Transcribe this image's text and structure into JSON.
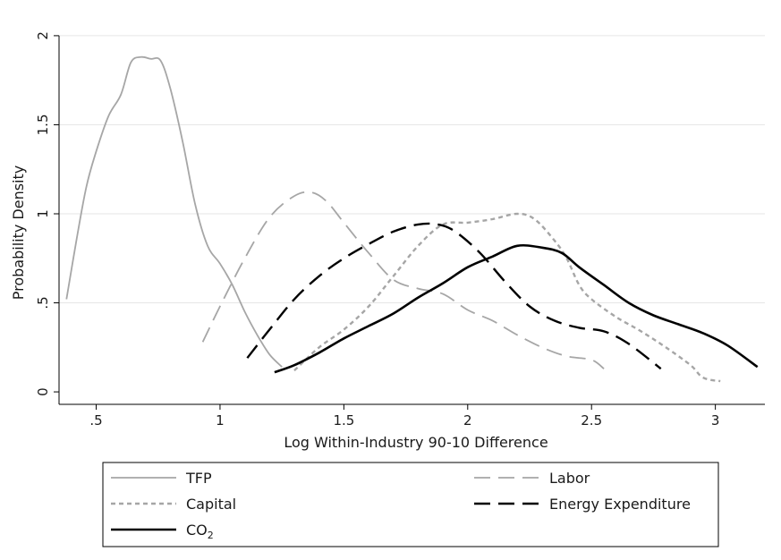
{
  "chart_data": {
    "type": "line",
    "title": "",
    "xlabel": "Log Within-Industry 90-10 Difference",
    "ylabel": "Probability Density",
    "xlim": [
      0.35,
      3.2
    ],
    "ylim": [
      -0.07,
      2.1
    ],
    "x_ticks": [
      0.5,
      1,
      1.5,
      2,
      2.5,
      3
    ],
    "x_tick_labels": [
      ".5",
      "1",
      "1.5",
      "2",
      "2.5",
      "3"
    ],
    "y_ticks": [
      0,
      0.5,
      1,
      1.5,
      2
    ],
    "y_tick_labels": [
      "0",
      ".5",
      "1",
      "1.5",
      "2"
    ],
    "grid": "horizontal",
    "legend_position": "bottom",
    "series": [
      {
        "name": "TFP",
        "color": "#a6a6a6",
        "dash": "solid",
        "width": 1.8,
        "points": [
          [
            0.38,
            0.52
          ],
          [
            0.42,
            0.85
          ],
          [
            0.46,
            1.15
          ],
          [
            0.5,
            1.35
          ],
          [
            0.55,
            1.55
          ],
          [
            0.6,
            1.67
          ],
          [
            0.64,
            1.85
          ],
          [
            0.68,
            1.88
          ],
          [
            0.72,
            1.87
          ],
          [
            0.76,
            1.86
          ],
          [
            0.8,
            1.7
          ],
          [
            0.85,
            1.4
          ],
          [
            0.9,
            1.05
          ],
          [
            0.95,
            0.82
          ],
          [
            1.0,
            0.72
          ],
          [
            1.05,
            0.6
          ],
          [
            1.1,
            0.45
          ],
          [
            1.15,
            0.32
          ],
          [
            1.2,
            0.21
          ],
          [
            1.25,
            0.14
          ]
        ]
      },
      {
        "name": "Labor",
        "color": "#a6a6a6",
        "dash": "long-dash",
        "width": 1.8,
        "points": [
          [
            0.93,
            0.28
          ],
          [
            1.0,
            0.48
          ],
          [
            1.1,
            0.75
          ],
          [
            1.2,
            0.98
          ],
          [
            1.3,
            1.1
          ],
          [
            1.37,
            1.12
          ],
          [
            1.43,
            1.07
          ],
          [
            1.5,
            0.95
          ],
          [
            1.6,
            0.78
          ],
          [
            1.7,
            0.63
          ],
          [
            1.8,
            0.58
          ],
          [
            1.9,
            0.55
          ],
          [
            2.0,
            0.46
          ],
          [
            2.1,
            0.4
          ],
          [
            2.2,
            0.32
          ],
          [
            2.3,
            0.25
          ],
          [
            2.4,
            0.2
          ],
          [
            2.5,
            0.18
          ],
          [
            2.55,
            0.13
          ]
        ]
      },
      {
        "name": "Capital",
        "color": "#a6a6a6",
        "dash": "short-dash",
        "width": 2.4,
        "points": [
          [
            1.3,
            0.12
          ],
          [
            1.4,
            0.25
          ],
          [
            1.5,
            0.35
          ],
          [
            1.6,
            0.48
          ],
          [
            1.7,
            0.65
          ],
          [
            1.8,
            0.82
          ],
          [
            1.9,
            0.94
          ],
          [
            2.0,
            0.95
          ],
          [
            2.1,
            0.97
          ],
          [
            2.2,
            1.0
          ],
          [
            2.27,
            0.97
          ],
          [
            2.35,
            0.85
          ],
          [
            2.4,
            0.75
          ],
          [
            2.45,
            0.6
          ],
          [
            2.5,
            0.52
          ],
          [
            2.6,
            0.42
          ],
          [
            2.7,
            0.34
          ],
          [
            2.8,
            0.25
          ],
          [
            2.9,
            0.15
          ],
          [
            2.95,
            0.08
          ],
          [
            3.02,
            0.06
          ]
        ]
      },
      {
        "name": "Energy Expenditure",
        "color": "#000000",
        "dash": "long-dash",
        "width": 2.4,
        "points": [
          [
            1.11,
            0.19
          ],
          [
            1.2,
            0.35
          ],
          [
            1.3,
            0.52
          ],
          [
            1.4,
            0.65
          ],
          [
            1.5,
            0.75
          ],
          [
            1.6,
            0.83
          ],
          [
            1.7,
            0.9
          ],
          [
            1.8,
            0.94
          ],
          [
            1.88,
            0.94
          ],
          [
            1.95,
            0.9
          ],
          [
            2.05,
            0.78
          ],
          [
            2.15,
            0.62
          ],
          [
            2.25,
            0.48
          ],
          [
            2.35,
            0.4
          ],
          [
            2.45,
            0.36
          ],
          [
            2.55,
            0.34
          ],
          [
            2.65,
            0.27
          ],
          [
            2.78,
            0.13
          ]
        ]
      },
      {
        "name": "CO2",
        "color": "#000000",
        "dash": "solid",
        "width": 2.6,
        "points": [
          [
            1.22,
            0.11
          ],
          [
            1.3,
            0.15
          ],
          [
            1.4,
            0.22
          ],
          [
            1.5,
            0.3
          ],
          [
            1.6,
            0.37
          ],
          [
            1.7,
            0.44
          ],
          [
            1.8,
            0.53
          ],
          [
            1.9,
            0.61
          ],
          [
            2.0,
            0.7
          ],
          [
            2.1,
            0.76
          ],
          [
            2.2,
            0.82
          ],
          [
            2.3,
            0.81
          ],
          [
            2.38,
            0.78
          ],
          [
            2.45,
            0.7
          ],
          [
            2.55,
            0.6
          ],
          [
            2.65,
            0.5
          ],
          [
            2.75,
            0.43
          ],
          [
            2.85,
            0.38
          ],
          [
            2.95,
            0.33
          ],
          [
            3.05,
            0.26
          ],
          [
            3.17,
            0.14
          ]
        ]
      }
    ],
    "legend": [
      {
        "label": "TFP",
        "series": 0
      },
      {
        "label": "Labor",
        "series": 1
      },
      {
        "label": "Capital",
        "series": 2
      },
      {
        "label": "Energy Expenditure",
        "series": 3
      },
      {
        "label": "CO",
        "sub": "2",
        "series": 4
      }
    ]
  }
}
